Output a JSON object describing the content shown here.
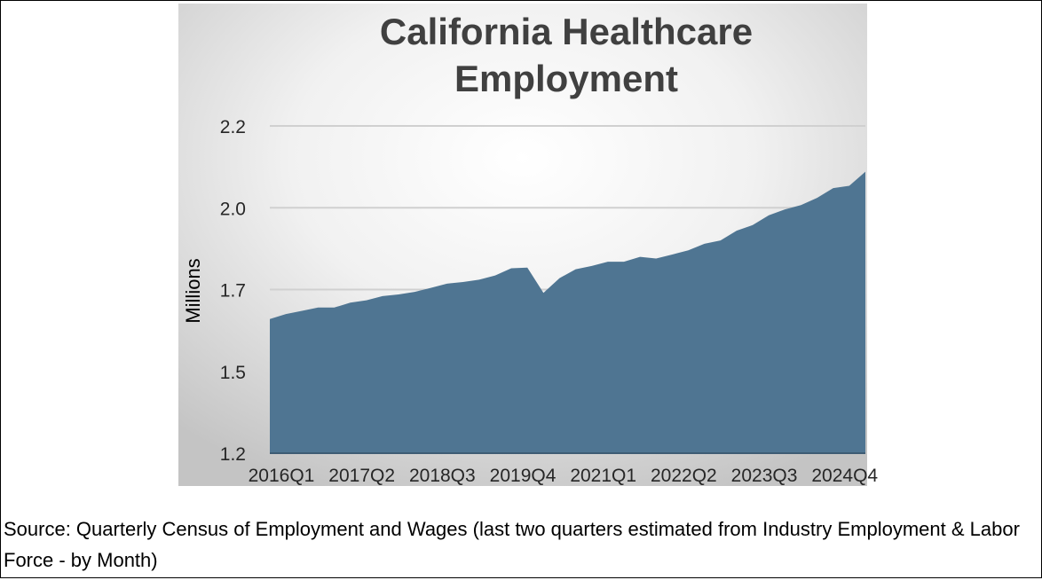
{
  "chart_data": {
    "type": "area",
    "title": "California Healthcare Employment",
    "title_lines": [
      "California Healthcare",
      "Employment"
    ],
    "ylabel": "Millions",
    "xlabel": "",
    "ylim": [
      1.2,
      2.2
    ],
    "yticks": [
      1.2,
      1.45,
      1.7,
      1.95,
      2.2
    ],
    "ytick_labels": [
      "1.2",
      "1.5",
      "1.7",
      "2.0",
      "2.2"
    ],
    "xtick_labels": [
      "2016Q1",
      "2017Q2",
      "2018Q3",
      "2019Q4",
      "2021Q1",
      "2022Q2",
      "2023Q3",
      "2024Q4"
    ],
    "grid": true,
    "legend": "none",
    "fill_color": "#4f7592",
    "x": [
      "2016Q1",
      "2016Q2",
      "2016Q3",
      "2016Q4",
      "2017Q1",
      "2017Q2",
      "2017Q3",
      "2017Q4",
      "2018Q1",
      "2018Q2",
      "2018Q3",
      "2018Q4",
      "2019Q1",
      "2019Q2",
      "2019Q3",
      "2019Q4",
      "2020Q1",
      "2020Q2",
      "2020Q3",
      "2020Q4",
      "2021Q1",
      "2021Q2",
      "2021Q3",
      "2021Q4",
      "2022Q1",
      "2022Q2",
      "2022Q3",
      "2022Q4",
      "2023Q1",
      "2023Q2",
      "2023Q3",
      "2023Q4",
      "2024Q1",
      "2024Q2",
      "2024Q3",
      "2024Q4",
      "2025Q1",
      "2025Q2"
    ],
    "values": [
      1.61,
      1.625,
      1.635,
      1.645,
      1.645,
      1.66,
      1.667,
      1.68,
      1.685,
      1.693,
      1.705,
      1.718,
      1.723,
      1.73,
      1.743,
      1.765,
      1.767,
      1.69,
      1.735,
      1.762,
      1.772,
      1.785,
      1.785,
      1.8,
      1.795,
      1.807,
      1.82,
      1.84,
      1.85,
      1.88,
      1.897,
      1.927,
      1.945,
      1.958,
      1.98,
      2.01,
      2.017,
      2.06
    ]
  },
  "source_text": "Source: Quarterly Census of Employment and Wages (last two quarters estimated from Industry Employment & Labor Force - by Month)"
}
